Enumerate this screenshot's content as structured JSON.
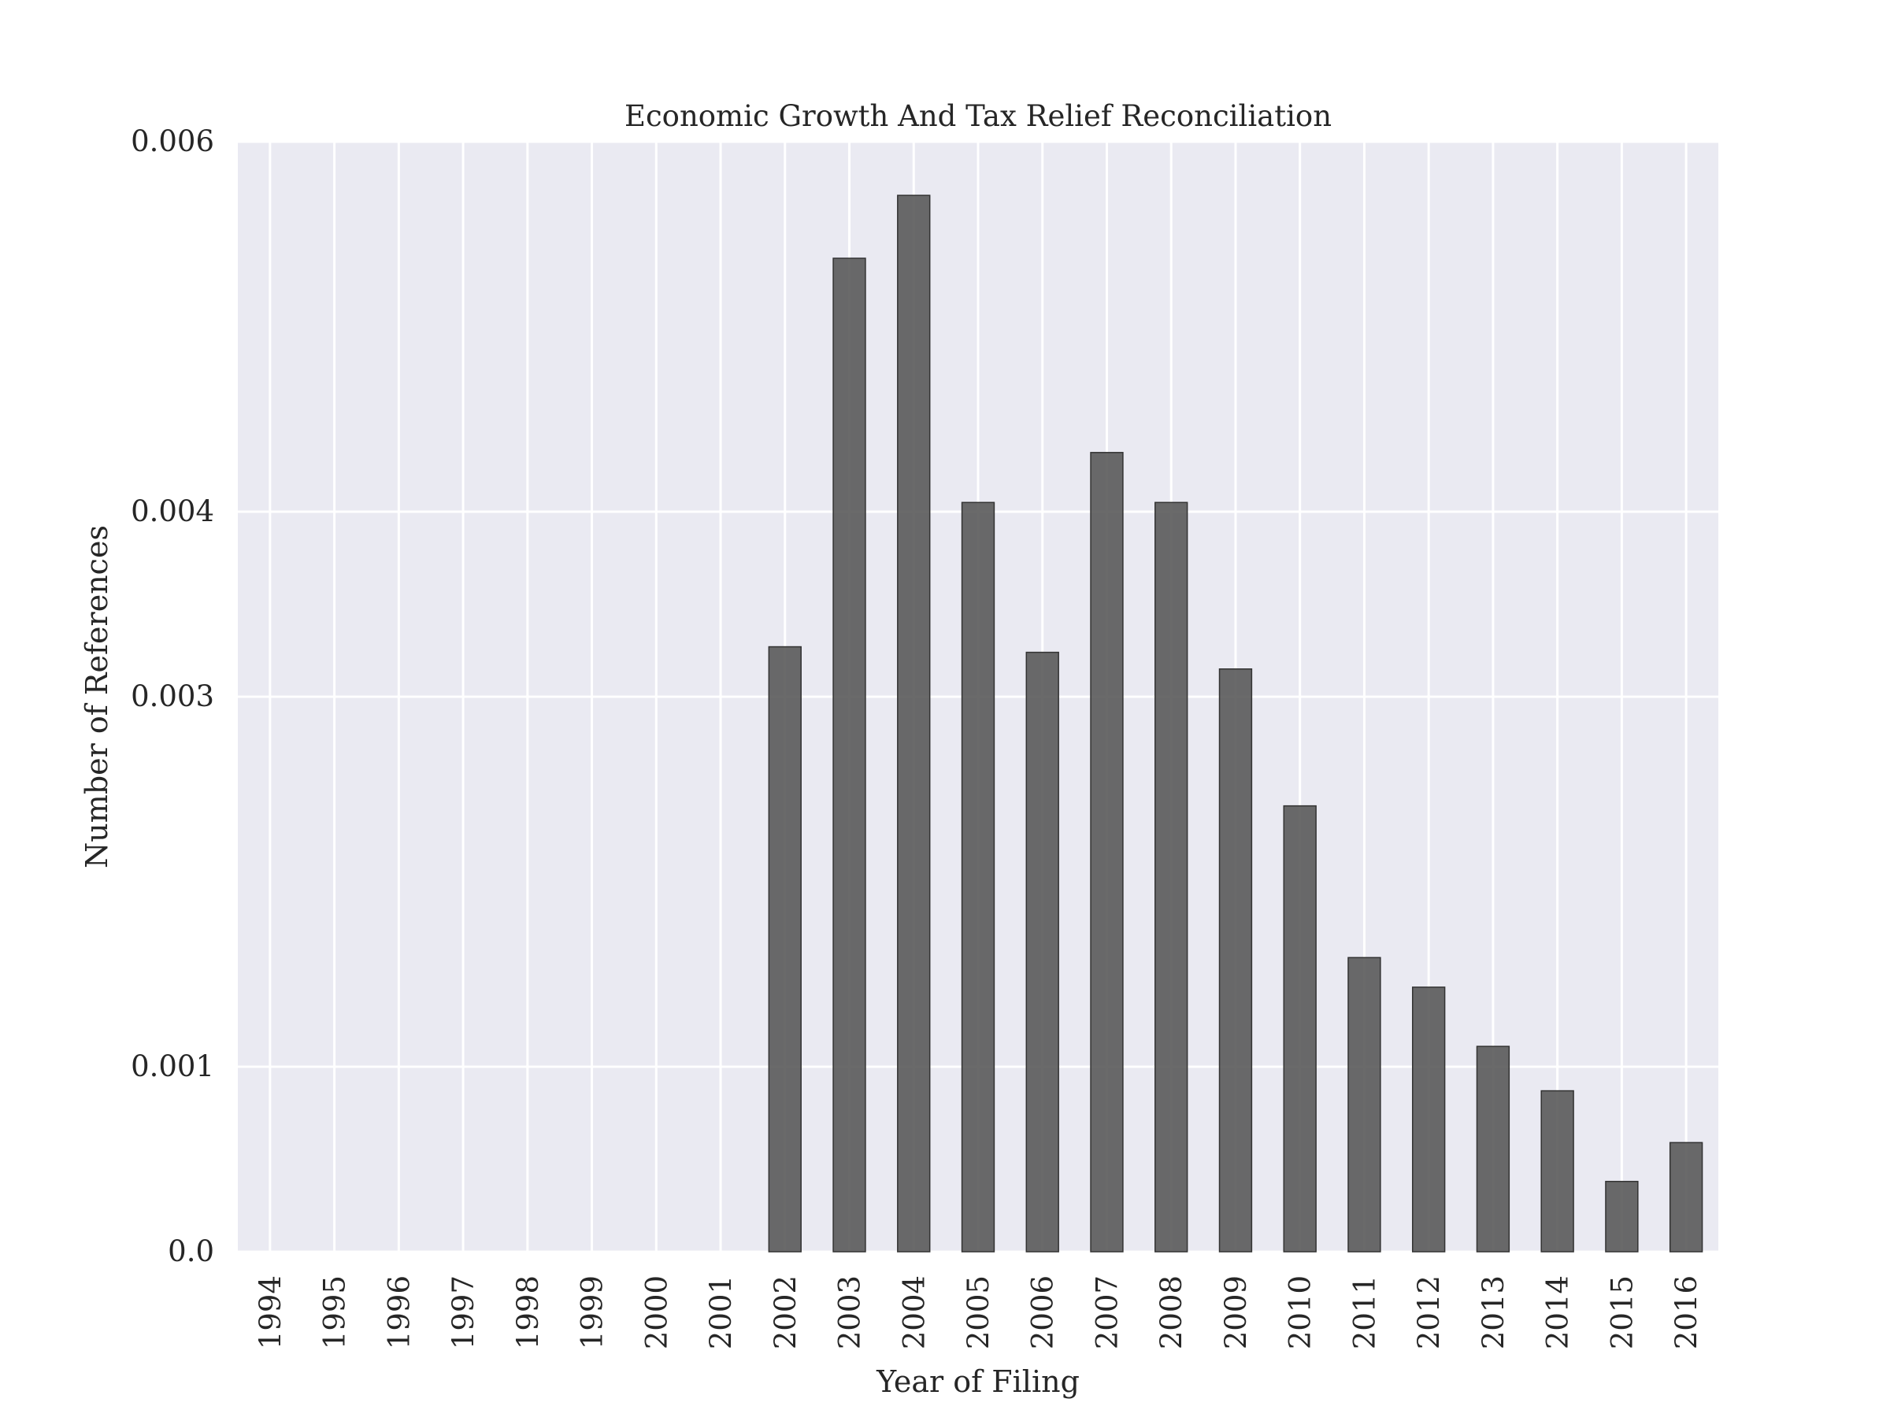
{
  "chart_data": {
    "type": "bar",
    "title": "Economic Growth And Tax Relief Reconciliation",
    "xlabel": "Year of Filing",
    "ylabel": "Number of References",
    "categories": [
      "1994",
      "1995",
      "1996",
      "1997",
      "1998",
      "1999",
      "2000",
      "2001",
      "2002",
      "2003",
      "2004",
      "2005",
      "2006",
      "2007",
      "2008",
      "2009",
      "2010",
      "2011",
      "2012",
      "2013",
      "2014",
      "2015",
      "2016"
    ],
    "values": [
      0,
      0,
      0,
      0,
      0,
      0,
      0,
      0,
      0.00327,
      0.00537,
      0.00571,
      0.00405,
      0.00324,
      0.00432,
      0.00405,
      0.00315,
      0.00241,
      0.00159,
      0.00143,
      0.00111,
      0.00087,
      0.00038,
      0.00059
    ],
    "yticks": [
      0.0,
      0.001,
      0.003,
      0.004,
      0.006
    ],
    "ytick_labels": [
      "0.0",
      "0.001",
      "0.003",
      "0.004",
      "0.006"
    ],
    "ylim": [
      0,
      0.006
    ],
    "grid": true,
    "colors": {
      "background": "#eaeaf2",
      "gridline": "#ffffff",
      "bar_fill": "#555555",
      "bar_stroke": "#333333"
    }
  }
}
